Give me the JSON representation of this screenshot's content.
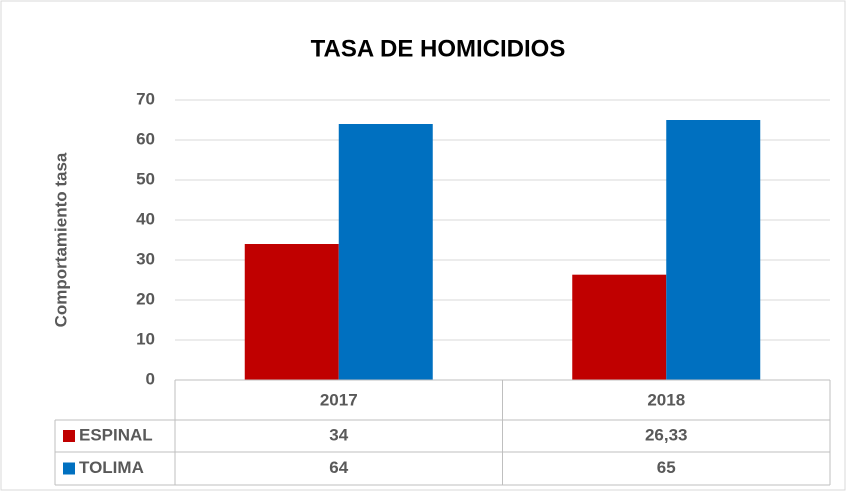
{
  "chart_data": {
    "type": "bar",
    "title": "TASA DE HOMICIDIOS",
    "y_label": "Comportamiento tasa",
    "categories": [
      "2017",
      "2018"
    ],
    "series": [
      {
        "name": "ESPINAL",
        "color": "#c00000",
        "values": [
          34,
          26.33
        ],
        "value_labels": [
          "34",
          "26,33"
        ]
      },
      {
        "name": "TOLIMA",
        "color": "#0070c0",
        "values": [
          64,
          65
        ]
      }
    ],
    "ylim": [
      0,
      70
    ],
    "yticks": [
      0,
      10,
      20,
      30,
      40,
      50,
      60,
      70
    ],
    "grid": true,
    "data_table": true
  }
}
